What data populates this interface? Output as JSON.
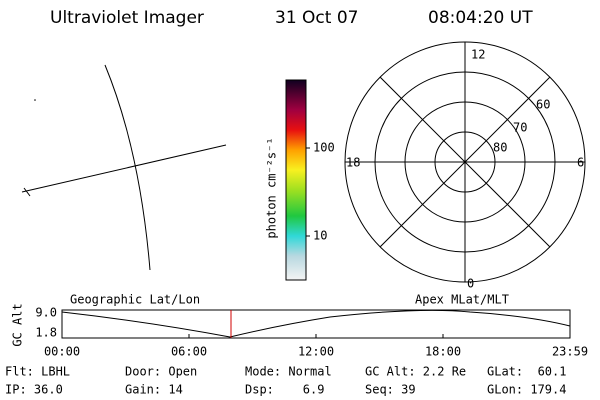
{
  "header": {
    "instrument": "Ultraviolet Imager",
    "date": "31 Oct 07",
    "time": "08:04:20 UT"
  },
  "colorbar": {
    "unit": "photon cm⁻²s⁻¹",
    "ticks": [
      "100",
      "10"
    ]
  },
  "polar": {
    "mlt_labels": [
      "12",
      "18",
      "6",
      "0"
    ],
    "mlat_labels": [
      "60",
      "70",
      "80"
    ]
  },
  "timeline": {
    "left_title": "Geographic Lat/Lon",
    "right_title": "Apex MLat/MLT",
    "y_label": "GC Alt",
    "y_ticks": [
      "9.0",
      "1.8"
    ],
    "x_ticks": [
      "00:00",
      "06:00",
      "12:00",
      "18:00",
      "23:59"
    ]
  },
  "status": {
    "rows": [
      [
        "Flt: LBHL",
        "Door: Open",
        "Mode: Normal",
        "GC Alt: 2.2 Re",
        "GLat:  60.1"
      ],
      [
        "IP: 36.0",
        "Gain: 14",
        "Dsp:    6.9",
        "Seq: 39",
        "GLon: 179.4"
      ]
    ]
  }
}
